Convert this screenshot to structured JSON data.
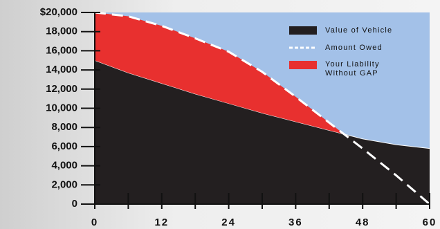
{
  "chart_data": {
    "type": "area",
    "x": [
      0,
      6,
      12,
      18,
      24,
      30,
      36,
      42,
      48,
      54,
      60
    ],
    "series": [
      {
        "name": "Value of Vehicle",
        "color": "#231f20",
        "values": [
          15000,
          13700,
          12600,
          11500,
          10500,
          9500,
          8600,
          7700,
          6800,
          6200,
          5800
        ]
      },
      {
        "name": "Amount Owed",
        "color": "#ffffff",
        "values": [
          20000,
          19600,
          18600,
          17300,
          15900,
          13800,
          11200,
          8500,
          5800,
          3000,
          0
        ]
      }
    ],
    "liability": {
      "name": "Your Liability Without GAP",
      "color": "#e8302f"
    },
    "background_color": "#a3c1e8",
    "xlim": [
      0,
      60
    ],
    "xticks": [
      0,
      12,
      24,
      36,
      48,
      60
    ],
    "xminor_ticks": [
      6,
      18,
      30,
      42,
      54
    ],
    "ylim": [
      0,
      20000
    ],
    "yticks": [
      0,
      {
        "value": 2000,
        "label": "2,000"
      },
      {
        "value": 4000,
        "label": "4,000"
      },
      {
        "value": 6000,
        "label": "6,000"
      },
      {
        "value": 8000,
        "label": "8,000"
      },
      {
        "value": 10000,
        "label": "10,000"
      },
      {
        "value": 12000,
        "label": "12,000"
      },
      {
        "value": 14000,
        "label": "14,000"
      },
      {
        "value": 16000,
        "label": "16,000"
      },
      {
        "value": 18000,
        "label": "18,000"
      },
      {
        "value": 20000,
        "label": "$20,000"
      }
    ]
  }
}
